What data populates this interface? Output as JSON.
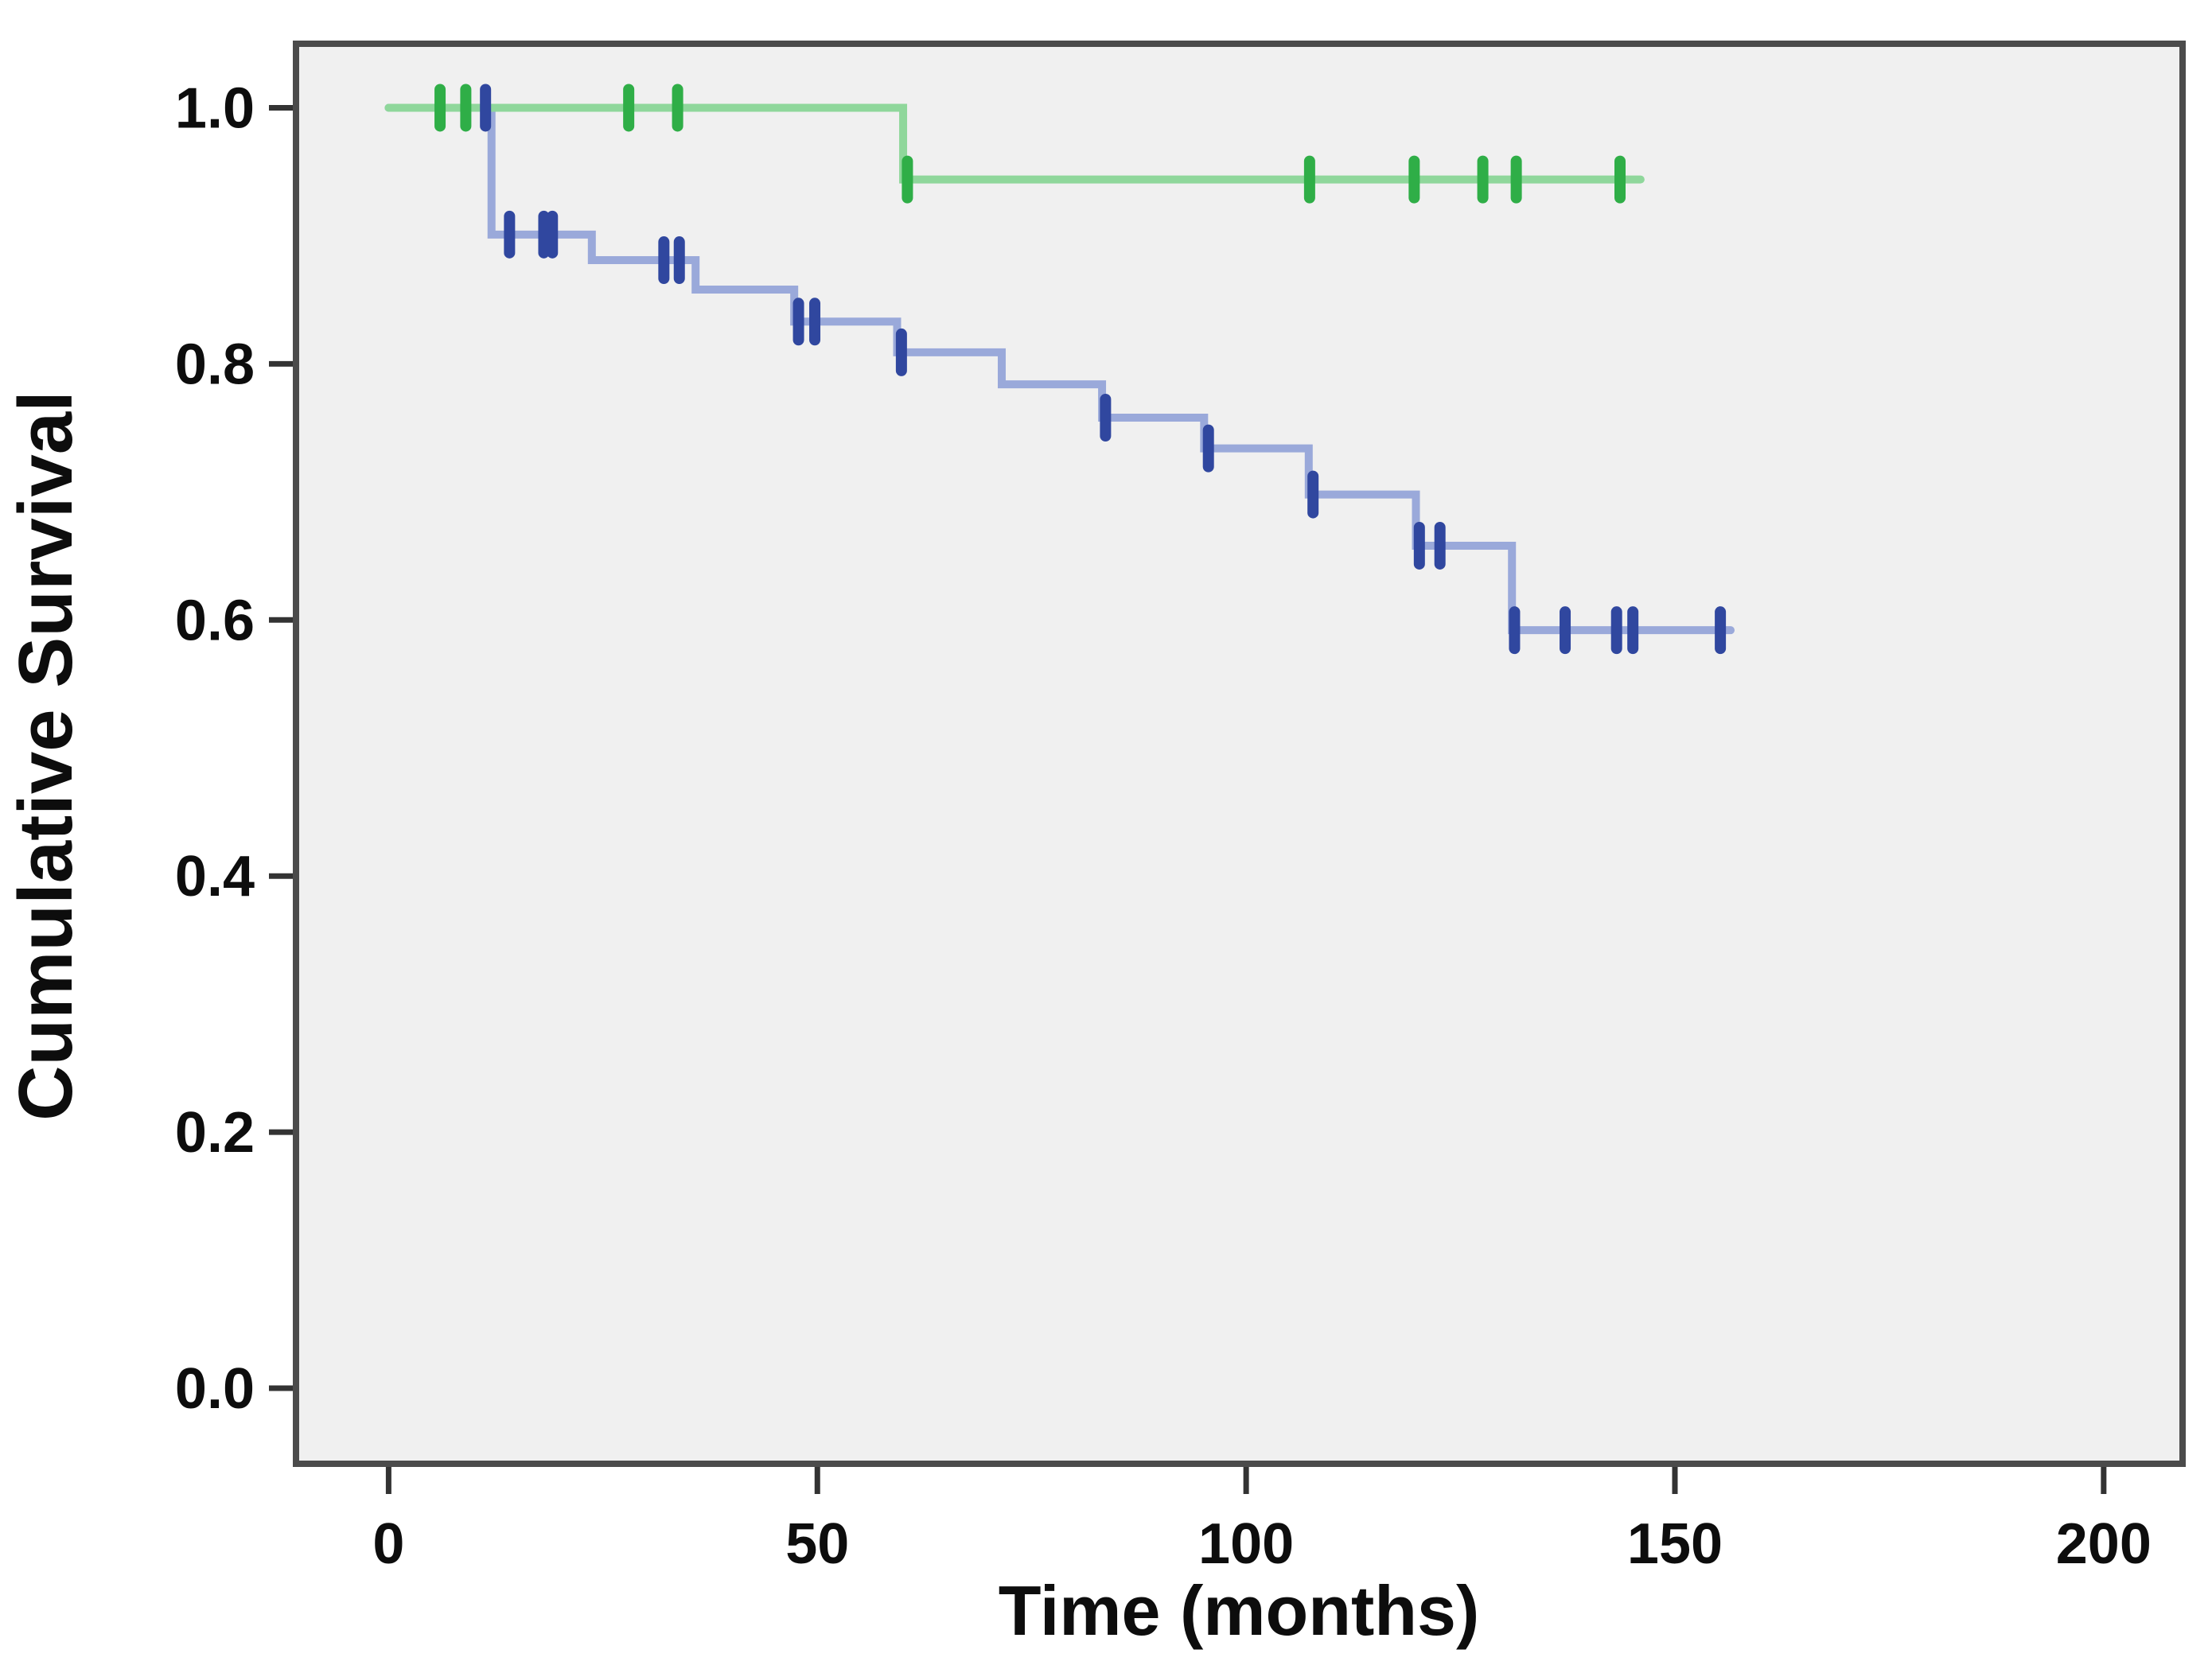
{
  "figure": {
    "title": "",
    "xlabel": "Time (months)",
    "ylabel": "Cumulative Survival"
  },
  "chart_data": {
    "type": "line",
    "subtype": "kaplan-meier-step",
    "title": "",
    "xlabel": "Time (months)",
    "ylabel": "Cumulative Survival",
    "grid": false,
    "legend": "none",
    "plot_bg": "#f0f0f0",
    "border_color": "#4b4b4b",
    "tick_color": "#333333",
    "xlim": [
      -10.8,
      209.2
    ],
    "ylim": [
      -0.059,
      1.05
    ],
    "xticks": [
      {
        "v": 0,
        "label": "0"
      },
      {
        "v": 50,
        "label": "50"
      },
      {
        "v": 100,
        "label": "100"
      },
      {
        "v": 150,
        "label": "150"
      },
      {
        "v": 200,
        "label": "200"
      }
    ],
    "yticks": [
      {
        "v": 1.0,
        "label": "1.0"
      },
      {
        "v": 0.8,
        "label": "0.8"
      },
      {
        "v": 0.6,
        "label": "0.6"
      },
      {
        "v": 0.4,
        "label": "0.4"
      },
      {
        "v": 0.2,
        "label": "0.2"
      },
      {
        "v": 0.0,
        "label": "0.0"
      }
    ],
    "series": [
      {
        "name": "blue-group",
        "line_color": "#9aa9da",
        "censor_color": "#30479f",
        "start": [
          0,
          1.0
        ],
        "steps": [
          [
            12,
            0.901
          ],
          [
            23.7,
            0.881
          ],
          [
            35.8,
            0.858
          ],
          [
            47.3,
            0.833
          ],
          [
            59.3,
            0.809
          ],
          [
            71.5,
            0.784
          ],
          [
            83.2,
            0.758
          ],
          [
            95.1,
            0.734
          ],
          [
            107.3,
            0.698
          ],
          [
            119.8,
            0.658
          ],
          [
            131,
            0.592
          ]
        ],
        "end_x": 156.5,
        "censors": [
          [
            11.3,
            1.0
          ],
          [
            14.1,
            0.901
          ],
          [
            18.1,
            0.901
          ],
          [
            19.1,
            0.901
          ],
          [
            32.1,
            0.881
          ],
          [
            33.9,
            0.881
          ],
          [
            47.8,
            0.833
          ],
          [
            49.7,
            0.833
          ],
          [
            59.8,
            0.809
          ],
          [
            83.6,
            0.758
          ],
          [
            95.6,
            0.734
          ],
          [
            107.8,
            0.698
          ],
          [
            120.2,
            0.658
          ],
          [
            122.6,
            0.658
          ],
          [
            131.3,
            0.592
          ],
          [
            137.2,
            0.592
          ],
          [
            143.2,
            0.592
          ],
          [
            145.1,
            0.592
          ],
          [
            155.3,
            0.592
          ]
        ]
      },
      {
        "name": "green-group",
        "line_color": "#8fd79b",
        "censor_color": "#2fae47",
        "start": [
          0,
          1.0
        ],
        "steps": [
          [
            60,
            0.944
          ]
        ],
        "end_x": 146,
        "censors": [
          [
            6,
            1.0
          ],
          [
            9,
            1.0
          ],
          [
            28,
            1.0
          ],
          [
            33.7,
            1.0
          ],
          [
            60.5,
            0.944
          ],
          [
            107.4,
            0.944
          ],
          [
            119.6,
            0.944
          ],
          [
            127.6,
            0.944
          ],
          [
            131.5,
            0.944
          ],
          [
            143.6,
            0.944
          ]
        ]
      }
    ]
  }
}
